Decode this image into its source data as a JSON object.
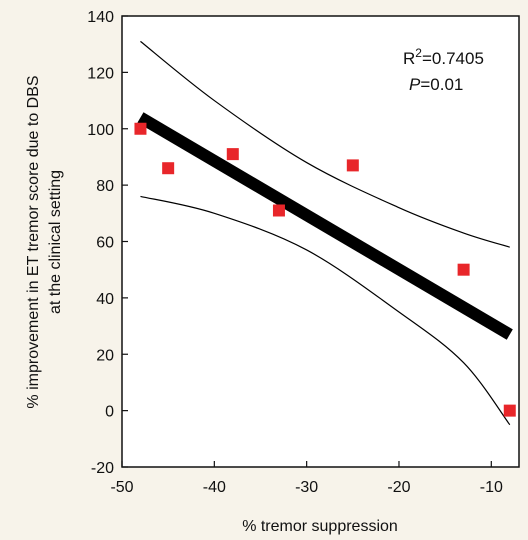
{
  "chart_data": {
    "type": "scatter",
    "xlabel": "% tremor suppression",
    "ylabel_line1": "% improvement in ET tremor score due to DBS",
    "ylabel_line2": "at the clinical setting",
    "xlim": [
      -50,
      -7
    ],
    "ylim": [
      -20,
      140
    ],
    "xticks": [
      -50,
      -40,
      -30,
      -20,
      -10
    ],
    "yticks": [
      -20,
      0,
      20,
      40,
      60,
      80,
      100,
      120,
      140
    ],
    "x": [
      -48,
      -45,
      -38,
      -33,
      -25,
      -13,
      -8
    ],
    "y": [
      100,
      86,
      91,
      71,
      87,
      50,
      0
    ],
    "marker_color": "#e8262a",
    "fit_line": {
      "x": [
        -48,
        -8
      ],
      "y": [
        104,
        27
      ],
      "color": "#000000"
    },
    "ci_upper": {
      "x": [
        -48,
        -40,
        -30,
        -20,
        -13,
        -8
      ],
      "y": [
        131,
        110,
        88,
        72,
        63,
        58
      ],
      "color": "#000000"
    },
    "ci_lower": {
      "x": [
        -48,
        -40,
        -30,
        -20,
        -13,
        -8
      ],
      "y": [
        76,
        70,
        57,
        35,
        17,
        -5
      ],
      "color": "#000000"
    },
    "stats": {
      "r_base": "R",
      "r_sup": "2",
      "r_value": "=0.7405",
      "p_label": "P",
      "p_value": "=0.01"
    }
  }
}
